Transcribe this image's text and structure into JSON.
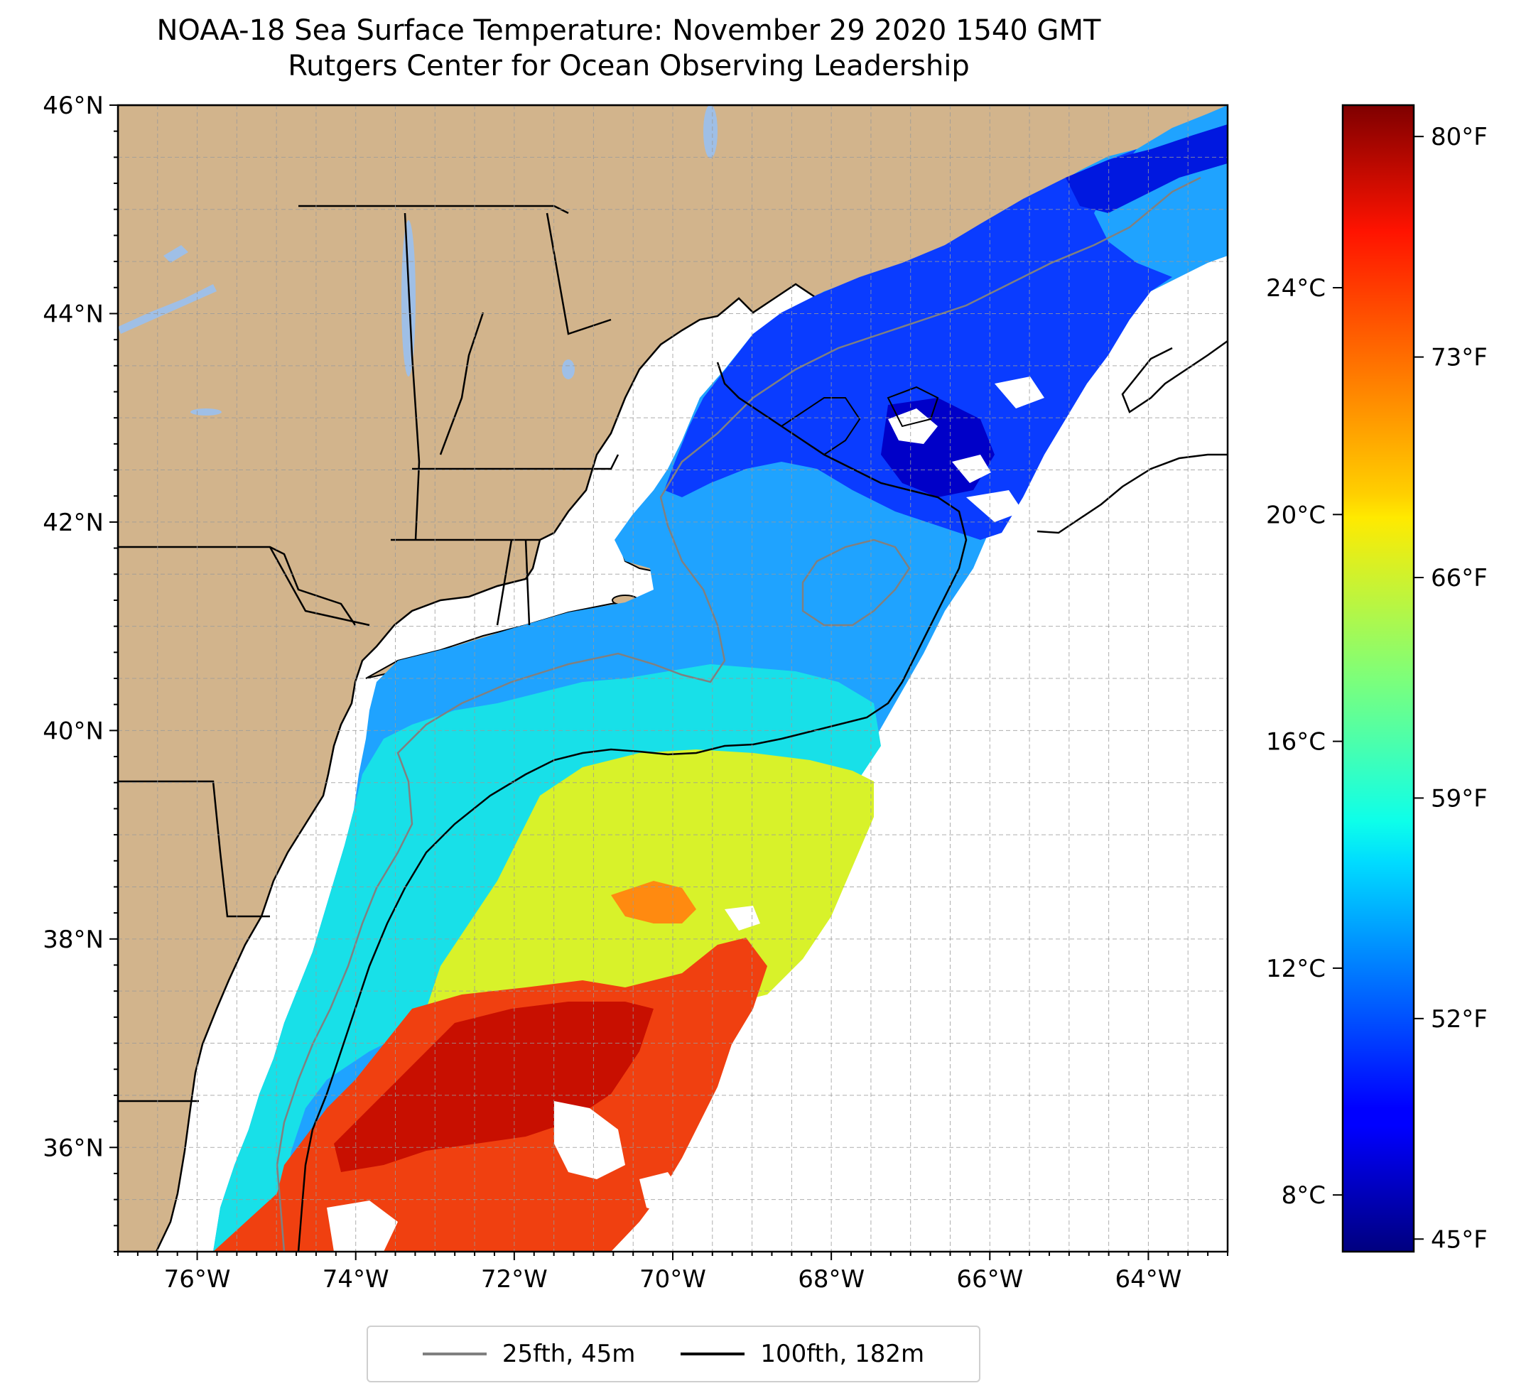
{
  "title": {
    "line1": "NOAA-18 Sea Surface Temperature: November 29 2020 1540 GMT",
    "line2": "Rutgers Center for Ocean Observing Leadership"
  },
  "map": {
    "lon_range": [
      -77,
      -63
    ],
    "lat_range": [
      35,
      46
    ],
    "lat_ticks": [
      {
        "value": 46,
        "label": "46°N"
      },
      {
        "value": 44,
        "label": "44°N"
      },
      {
        "value": 42,
        "label": "42°N"
      },
      {
        "value": 40,
        "label": "40°N"
      },
      {
        "value": 38,
        "label": "38°N"
      },
      {
        "value": 36,
        "label": "36°N"
      }
    ],
    "lon_ticks": [
      {
        "value": -76,
        "label": "76°W"
      },
      {
        "value": -74,
        "label": "74°W"
      },
      {
        "value": -72,
        "label": "72°W"
      },
      {
        "value": -70,
        "label": "70°W"
      },
      {
        "value": -68,
        "label": "68°W"
      },
      {
        "value": -66,
        "label": "66°W"
      },
      {
        "value": -64,
        "label": "64°W"
      }
    ],
    "colors": {
      "land": "#d2b48c",
      "lakes": "#9fbfe6",
      "grid": "#9a9a9a",
      "no_data": "#ffffff"
    },
    "layers": {
      "sst_field": "sea-surface-temperature",
      "contour_25fth": "25fth-isobath",
      "contour_100fth": "100fth-isobath"
    }
  },
  "colorbar": {
    "colormap": "jet",
    "range_c": [
      7,
      27.22
    ],
    "celsius_ticks": [
      {
        "value": 24,
        "label": "24°C"
      },
      {
        "value": 20,
        "label": "20°C"
      },
      {
        "value": 16,
        "label": "16°C"
      },
      {
        "value": 12,
        "label": "12°C"
      },
      {
        "value": 8,
        "label": "8°C"
      }
    ],
    "fahrenheit_ticks": [
      {
        "value": 80,
        "label": "80°F"
      },
      {
        "value": 73,
        "label": "73°F"
      },
      {
        "value": 66,
        "label": "66°F"
      },
      {
        "value": 59,
        "label": "59°F"
      },
      {
        "value": 52,
        "label": "52°F"
      },
      {
        "value": 45,
        "label": "45°F"
      }
    ]
  },
  "legend": {
    "items": [
      {
        "label": "25fth, 45m",
        "color": "#808080"
      },
      {
        "label": "100fth, 182m",
        "color": "#000000"
      }
    ]
  }
}
